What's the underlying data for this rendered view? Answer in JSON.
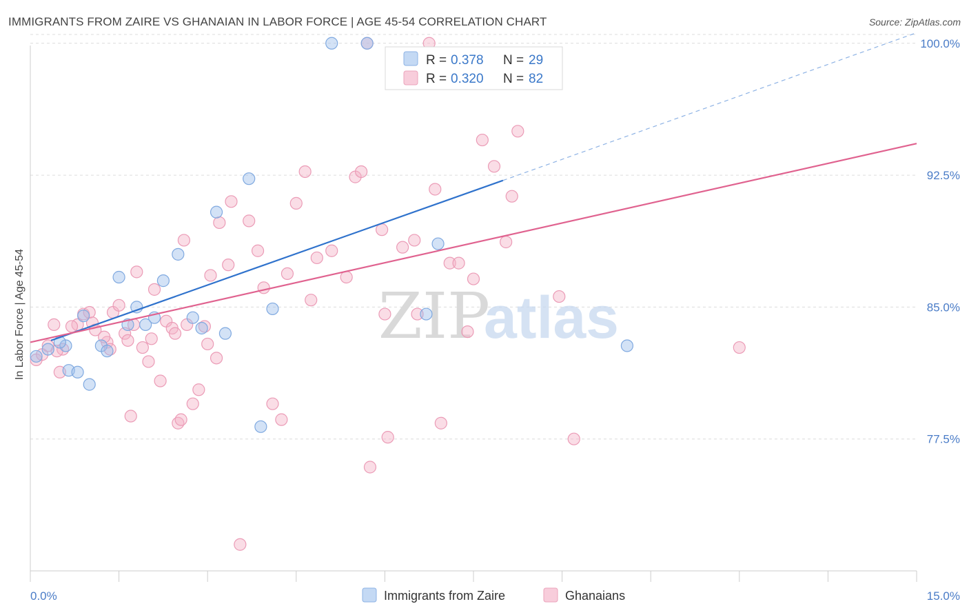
{
  "header": {
    "title": "IMMIGRANTS FROM ZAIRE VS GHANAIAN IN LABOR FORCE | AGE 45-54 CORRELATION CHART",
    "source": "Source: ZipAtlas.com"
  },
  "watermark": {
    "zip": "ZIP",
    "atlas": "atlas"
  },
  "chart_data": {
    "type": "scatter",
    "title": "IMMIGRANTS FROM ZAIRE VS GHANAIAN IN LABOR FORCE | AGE 45-54 CORRELATION CHART",
    "xlabel": "",
    "ylabel": "In Labor Force | Age 45-54",
    "xlim": [
      0,
      15
    ],
    "ylim": [
      70,
      100.5
    ],
    "x_tick_labels": [
      "0.0%",
      "15.0%"
    ],
    "y_ticks": [
      77.5,
      85.0,
      92.5,
      100.0
    ],
    "y_tick_labels": [
      "77.5%",
      "85.0%",
      "92.5%",
      "100.0%"
    ],
    "grid": true,
    "legend_position": "top-center",
    "stats": [
      {
        "r_label": "R =",
        "r_value": "0.378",
        "n_label": "N =",
        "n_value": "29"
      },
      {
        "r_label": "R =",
        "r_value": "0.320",
        "n_label": "N =",
        "n_value": "82"
      }
    ],
    "series": [
      {
        "name": "Immigrants from Zaire",
        "color": "#9dbfea",
        "line_color": "#2f72cc",
        "trend": {
          "x0": 0.35,
          "y0": 83.1,
          "x1": 8.0,
          "y1": 92.2,
          "dashed_to_x": 15.0,
          "dashed_to_y": 100.6
        },
        "points": [
          [
            0.1,
            82.2
          ],
          [
            0.3,
            82.6
          ],
          [
            0.6,
            82.8
          ],
          [
            0.65,
            81.4
          ],
          [
            0.8,
            81.3
          ],
          [
            0.9,
            84.5
          ],
          [
            1.0,
            80.6
          ],
          [
            1.2,
            82.8
          ],
          [
            1.3,
            82.5
          ],
          [
            1.5,
            86.7
          ],
          [
            1.65,
            84.0
          ],
          [
            1.8,
            85.0
          ],
          [
            1.95,
            84.0
          ],
          [
            2.1,
            84.4
          ],
          [
            2.25,
            86.5
          ],
          [
            2.5,
            88.0
          ],
          [
            2.75,
            84.4
          ],
          [
            2.9,
            83.8
          ],
          [
            3.15,
            90.4
          ],
          [
            3.3,
            83.5
          ],
          [
            3.7,
            92.3
          ],
          [
            3.9,
            78.2
          ],
          [
            4.1,
            84.9
          ],
          [
            5.1,
            100.0
          ],
          [
            5.7,
            100.0
          ],
          [
            6.7,
            84.6
          ],
          [
            6.9,
            88.6
          ],
          [
            10.1,
            82.8
          ],
          [
            0.5,
            83.0
          ]
        ]
      },
      {
        "name": "Ghanaians",
        "color": "#f3b3c7",
        "line_color": "#e0628f",
        "trend": {
          "x0": 0.0,
          "y0": 83.0,
          "x1": 15.0,
          "y1": 94.3
        },
        "points": [
          [
            0.1,
            82.0
          ],
          [
            0.2,
            82.3
          ],
          [
            0.3,
            82.8
          ],
          [
            0.4,
            84.0
          ],
          [
            0.5,
            81.3
          ],
          [
            0.55,
            82.6
          ],
          [
            0.8,
            84.0
          ],
          [
            0.9,
            84.6
          ],
          [
            1.0,
            84.7
          ],
          [
            1.05,
            84.1
          ],
          [
            1.1,
            83.7
          ],
          [
            1.3,
            83.0
          ],
          [
            1.35,
            82.6
          ],
          [
            1.4,
            84.7
          ],
          [
            1.5,
            85.1
          ],
          [
            1.6,
            83.5
          ],
          [
            1.65,
            83.1
          ],
          [
            1.7,
            78.8
          ],
          [
            1.75,
            84.0
          ],
          [
            1.8,
            87.0
          ],
          [
            1.9,
            82.7
          ],
          [
            2.0,
            81.9
          ],
          [
            2.05,
            83.2
          ],
          [
            2.1,
            86.0
          ],
          [
            2.2,
            80.8
          ],
          [
            2.3,
            84.2
          ],
          [
            2.4,
            83.8
          ],
          [
            2.45,
            83.5
          ],
          [
            2.5,
            78.4
          ],
          [
            2.55,
            78.6
          ],
          [
            2.6,
            88.8
          ],
          [
            2.75,
            79.5
          ],
          [
            2.85,
            80.3
          ],
          [
            2.95,
            83.9
          ],
          [
            3.05,
            86.8
          ],
          [
            3.15,
            82.1
          ],
          [
            3.2,
            89.8
          ],
          [
            3.35,
            87.4
          ],
          [
            3.4,
            91.0
          ],
          [
            3.55,
            71.5
          ],
          [
            3.7,
            89.9
          ],
          [
            3.85,
            88.2
          ],
          [
            3.95,
            86.1
          ],
          [
            4.1,
            79.5
          ],
          [
            4.25,
            78.6
          ],
          [
            4.35,
            86.9
          ],
          [
            4.5,
            90.9
          ],
          [
            4.65,
            92.7
          ],
          [
            4.75,
            85.4
          ],
          [
            4.85,
            87.8
          ],
          [
            5.1,
            88.2
          ],
          [
            5.35,
            86.7
          ],
          [
            5.5,
            92.4
          ],
          [
            5.6,
            92.7
          ],
          [
            5.7,
            100.0
          ],
          [
            5.75,
            75.9
          ],
          [
            5.95,
            89.4
          ],
          [
            6.0,
            84.6
          ],
          [
            6.05,
            77.6
          ],
          [
            6.3,
            88.4
          ],
          [
            6.5,
            88.8
          ],
          [
            6.55,
            84.6
          ],
          [
            6.75,
            100.0
          ],
          [
            6.85,
            91.7
          ],
          [
            6.95,
            78.4
          ],
          [
            7.1,
            87.5
          ],
          [
            7.25,
            87.5
          ],
          [
            7.4,
            83.6
          ],
          [
            7.5,
            86.6
          ],
          [
            7.65,
            94.5
          ],
          [
            7.85,
            93.0
          ],
          [
            8.05,
            88.7
          ],
          [
            8.15,
            91.3
          ],
          [
            8.25,
            95.0
          ],
          [
            8.95,
            85.6
          ],
          [
            9.2,
            77.5
          ],
          [
            12.0,
            82.7
          ],
          [
            0.45,
            82.5
          ],
          [
            0.7,
            83.9
          ],
          [
            1.25,
            83.3
          ],
          [
            2.65,
            84.0
          ],
          [
            3.0,
            82.9
          ]
        ]
      }
    ]
  }
}
